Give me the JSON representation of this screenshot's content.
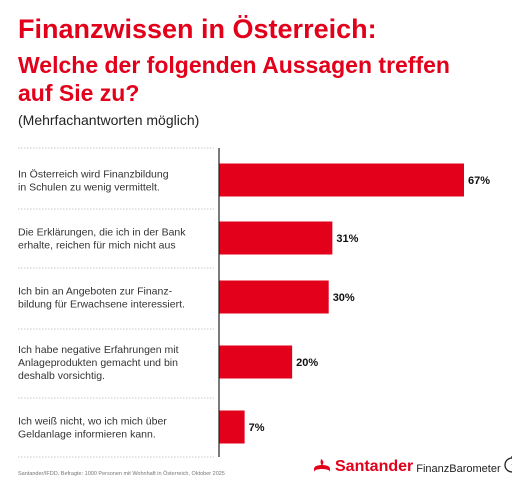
{
  "header": {
    "title_line1": "Finanzwissen in Österreich:",
    "title_line2": "Welche der folgenden Aussagen treffen",
    "title_line3": "auf Sie zu?",
    "subtitle": "(Mehrfachantworten möglich)"
  },
  "chart_data": {
    "type": "bar",
    "orientation": "horizontal",
    "categories": [
      [
        "In Österreich wird Finanzbildung",
        "in Schulen zu wenig vermittelt."
      ],
      [
        "Die Erklärungen, die ich in der Bank",
        "erhalte, reichen für mich nicht aus"
      ],
      [
        "Ich bin an Angeboten zur Finanz-",
        "bildung für Erwachsene interessiert."
      ],
      [
        "Ich habe negative Erfahrungen mit",
        "Anlageprodukten gemacht und bin",
        "deshalb vorsichtig."
      ],
      [
        "Ich weiß nicht, wo ich mich über",
        "Geldanlage informieren kann."
      ]
    ],
    "values": [
      67,
      31,
      30,
      20,
      7
    ],
    "value_labels": [
      "67%",
      "31%",
      "30%",
      "20%",
      "7%"
    ],
    "xlim": [
      0,
      67
    ],
    "bar_color": "#e2001a",
    "grid": false
  },
  "footer": {
    "source": "Santander/IFDD, Befragte: 1000 Personen mit Wohnhaft in Österreich, Oktober 2025",
    "brand_name": "Santander",
    "brand_sub": "FinanzBarometer"
  },
  "colors": {
    "accent": "#e2001a",
    "separator": "#c8c8c8",
    "axis": "#222222"
  },
  "icons": {
    "logo": "santander-flame-icon",
    "gauge": "gauge-icon"
  }
}
